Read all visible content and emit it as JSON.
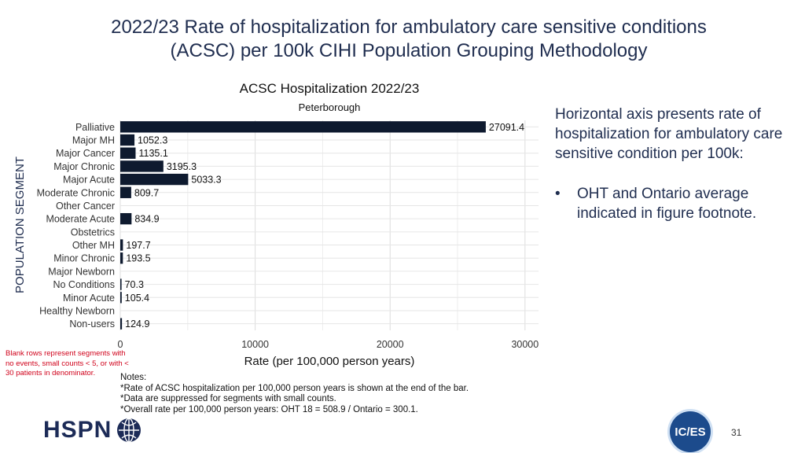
{
  "slide": {
    "title_line1": "2022/23 Rate of hospitalization for ambulatory care sensitive conditions",
    "title_line2": "(ACSC) per 100k CIHI Population Grouping Methodology",
    "side_text": "Horizontal axis presents rate of hospitalization for ambulatory care sensitive condition per 100k:",
    "side_bullet": "OHT and Ontario average indicated in figure footnote.",
    "blank_note": "Blank rows represent segments with no events, small counts < 5, or with < 30 patients in denominator.",
    "notes": [
      "Notes:",
      "*Rate of ACSC hospitalization per 100,000 person years is shown at the end of the bar.",
      "*Data are suppressed for segments with small counts.",
      "*Overall rate per 100,000 person years: OHT 18 = 508.9 / Ontario = 300.1."
    ],
    "logo_left": "HSPN",
    "logo_right": "IC/ES",
    "page_number": "31"
  },
  "chart_data": {
    "type": "bar",
    "orientation": "horizontal",
    "title": "ACSC Hospitalization 2022/23",
    "subtitle": "Peterborough",
    "xlabel": "Rate (per 100,000 person years)",
    "ylabel": "POPULATION SEGMENT",
    "xlim": [
      0,
      31000
    ],
    "xticks": [
      0,
      10000,
      20000,
      30000
    ],
    "xtick_labels": [
      "0",
      "10000",
      "20000",
      "30000"
    ],
    "grid": true,
    "bar_color": "#0e1a2f",
    "categories": [
      "Palliative",
      "Major MH",
      "Major Cancer",
      "Major Chronic",
      "Major Acute",
      "Moderate Chronic",
      "Other Cancer",
      "Moderate Acute",
      "Obstetrics",
      "Other MH",
      "Minor Chronic",
      "Major Newborn",
      "No Conditions",
      "Minor Acute",
      "Healthy Newborn",
      "Non-users"
    ],
    "values": [
      27091.4,
      1052.3,
      1135.1,
      3195.3,
      5033.3,
      809.7,
      null,
      834.9,
      null,
      197.7,
      193.5,
      null,
      70.3,
      105.4,
      null,
      124.9
    ],
    "value_labels": [
      "27091.4",
      "1052.3",
      "1135.1",
      "3195.3",
      "5033.3",
      "809.7",
      "",
      "834.9",
      "",
      "197.7",
      "193.5",
      "",
      "70.3",
      "105.4",
      "",
      "124.9"
    ]
  }
}
